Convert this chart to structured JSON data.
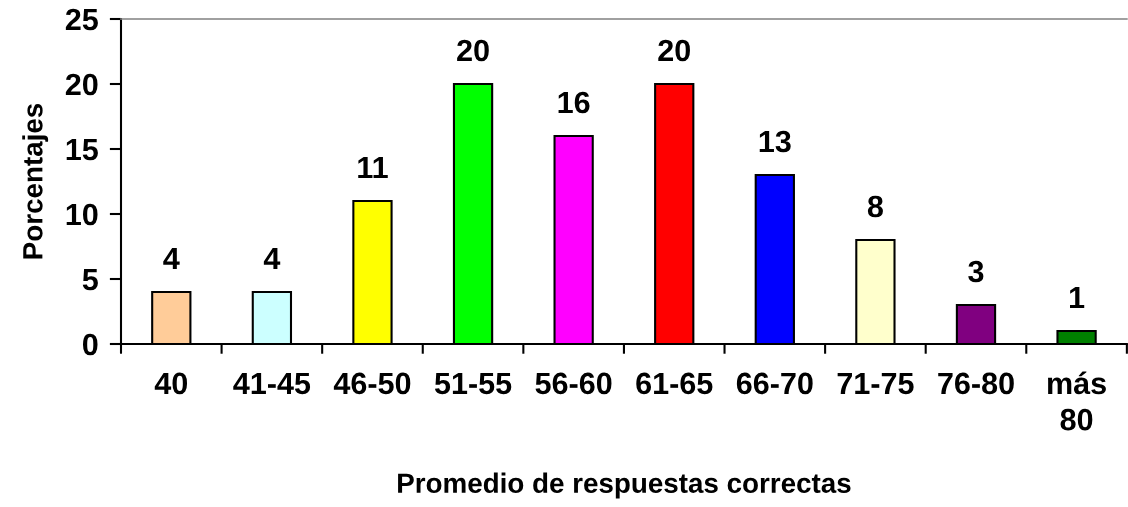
{
  "chart_data": {
    "type": "bar",
    "xlabel": "Promedio de respuestas correctas",
    "ylabel": "Porcentajes",
    "categories": [
      "40",
      "41-45",
      "46-50",
      "51-55",
      "56-60",
      "61-65",
      "66-70",
      "71-75",
      "76-80",
      "más 80"
    ],
    "values": [
      4,
      4,
      11,
      20,
      16,
      20,
      13,
      8,
      3,
      1
    ],
    "colors": [
      "#ffcc99",
      "#ccffff",
      "#ffff00",
      "#00ff00",
      "#ff00ff",
      "#ff0000",
      "#0000ff",
      "#ffffcc",
      "#800080",
      "#008000"
    ],
    "ylim": [
      0,
      25
    ],
    "yticks": [
      0,
      5,
      10,
      15,
      20,
      25
    ],
    "data_labels": true
  }
}
